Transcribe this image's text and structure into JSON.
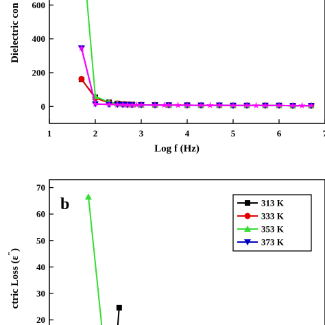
{
  "chart_data": [
    {
      "type": "line",
      "panel_label": "",
      "xlabel": "Log f (Hz)",
      "ylabel": "Dielectric con",
      "xlim": [
        1,
        7
      ],
      "ylim": [
        -100,
        650
      ],
      "xticks": [
        "1",
        "2",
        "3",
        "4",
        "5",
        "6",
        "7"
      ],
      "yticks": [
        "0",
        "200",
        "400",
        "600"
      ],
      "grid": false,
      "series": [
        {
          "color": "#000000",
          "marker": "square",
          "points": [
            [
              1.7,
              160
            ],
            [
              2.0,
              55
            ],
            [
              2.3,
              25
            ],
            [
              2.48,
              18
            ],
            [
              2.6,
              15
            ],
            [
              2.7,
              13
            ],
            [
              2.8,
              12
            ],
            [
              3.0,
              10
            ],
            [
              3.3,
              9
            ],
            [
              3.6,
              8
            ],
            [
              4.0,
              8
            ],
            [
              4.3,
              7
            ],
            [
              4.7,
              7
            ],
            [
              5.0,
              6
            ],
            [
              5.3,
              6
            ],
            [
              5.7,
              6
            ],
            [
              6.0,
              6
            ],
            [
              6.3,
              5
            ],
            [
              6.7,
              5
            ]
          ]
        },
        {
          "color": "#e00000",
          "marker": "circle",
          "points": [
            [
              1.7,
              162
            ],
            [
              2.0,
              50
            ],
            [
              2.3,
              22
            ],
            [
              2.48,
              17
            ],
            [
              2.6,
              14
            ],
            [
              2.7,
              12
            ],
            [
              2.8,
              11
            ],
            [
              3.0,
              10
            ],
            [
              3.3,
              9
            ],
            [
              3.6,
              8
            ],
            [
              4.0,
              8
            ],
            [
              4.3,
              7
            ],
            [
              4.7,
              7
            ],
            [
              5.0,
              6
            ],
            [
              5.3,
              6
            ],
            [
              5.7,
              6
            ],
            [
              6.0,
              6
            ],
            [
              6.3,
              5
            ],
            [
              6.7,
              5
            ]
          ]
        },
        {
          "color": "#33dd33",
          "marker": "triangle-up",
          "points": [
            [
              1.7,
              1000
            ],
            [
              2.0,
              60
            ],
            [
              2.3,
              25
            ],
            [
              2.48,
              18
            ],
            [
              2.6,
              15
            ],
            [
              2.7,
              13
            ],
            [
              2.8,
              12
            ],
            [
              3.0,
              10
            ],
            [
              3.3,
              9
            ],
            [
              3.6,
              8
            ],
            [
              4.0,
              8
            ],
            [
              4.3,
              7
            ],
            [
              4.7,
              7
            ],
            [
              5.0,
              6
            ],
            [
              5.3,
              6
            ],
            [
              5.7,
              6
            ],
            [
              6.0,
              6
            ],
            [
              6.3,
              5
            ],
            [
              6.7,
              5
            ]
          ]
        },
        {
          "color": "#0000c0",
          "marker": "triangle-down",
          "points": [
            [
              1.7,
              345
            ],
            [
              2.0,
              15
            ],
            [
              2.3,
              12
            ],
            [
              2.48,
              11
            ],
            [
              2.6,
              10
            ],
            [
              2.7,
              10
            ],
            [
              2.8,
              9
            ],
            [
              3.0,
              9
            ],
            [
              3.3,
              8
            ],
            [
              3.6,
              8
            ],
            [
              4.0,
              7
            ],
            [
              4.3,
              7
            ],
            [
              4.7,
              7
            ],
            [
              5.0,
              6
            ],
            [
              5.3,
              6
            ],
            [
              5.7,
              6
            ],
            [
              6.0,
              6
            ],
            [
              6.3,
              5
            ],
            [
              6.7,
              5
            ]
          ]
        },
        {
          "color": "#ff00ff",
          "marker": "star",
          "points": [
            [
              1.7,
              345
            ],
            [
              2.0,
              15
            ],
            [
              2.3,
              12
            ],
            [
              2.48,
              11
            ],
            [
              2.6,
              10
            ],
            [
              2.7,
              10
            ],
            [
              2.8,
              9
            ],
            [
              2.9,
              9
            ],
            [
              3.0,
              9
            ],
            [
              3.3,
              8
            ],
            [
              3.5,
              8
            ],
            [
              3.6,
              8
            ],
            [
              3.8,
              8
            ],
            [
              4.0,
              7
            ],
            [
              4.3,
              7
            ],
            [
              4.5,
              7
            ],
            [
              4.7,
              7
            ],
            [
              5.0,
              6
            ],
            [
              5.3,
              6
            ],
            [
              5.5,
              6
            ],
            [
              5.7,
              6
            ],
            [
              6.0,
              6
            ],
            [
              6.3,
              5
            ],
            [
              6.5,
              5
            ],
            [
              6.7,
              5
            ]
          ]
        }
      ]
    },
    {
      "type": "line",
      "panel_label": "b",
      "xlabel": "",
      "ylabel": "ctric Loss (ε″)",
      "ylabel_parts": {
        "text": "ctric Loss (ε",
        "quote": "\"",
        "close": ")"
      },
      "xlim": [
        1,
        7
      ],
      "ylim": [
        16,
        73
      ],
      "yticks": [
        "20",
        "30",
        "40",
        "50",
        "60",
        "70"
      ],
      "grid": false,
      "legend": {
        "placement": "top-right",
        "entries": [
          "313 K",
          "333 K",
          "353 K",
          "373 K"
        ]
      },
      "series": [
        {
          "name": "313 K",
          "color": "#000000",
          "marker": "square",
          "points": [
            [
              2.52,
              24.6
            ],
            [
              2.48,
              16.0
            ]
          ]
        },
        {
          "name": "333 K",
          "color": "#e00000",
          "marker": "circle",
          "points": []
        },
        {
          "name": "353 K",
          "color": "#33dd33",
          "marker": "triangle-up",
          "points": [
            [
              1.85,
              66.5
            ],
            [
              2.15,
              16.0
            ]
          ]
        },
        {
          "name": "373 K",
          "color": "#0000c0",
          "marker": "triangle-down",
          "points": []
        }
      ]
    }
  ]
}
